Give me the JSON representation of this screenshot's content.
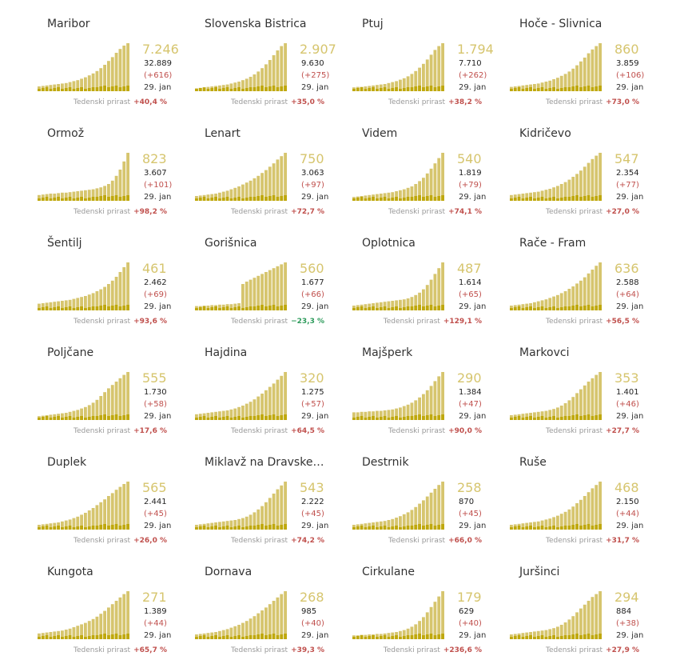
{
  "colors": {
    "bar_total": "#d6c56e",
    "bar_new": "#bfa80c",
    "positive": "#c0504d",
    "negative": "#2e9b5c"
  },
  "date_label": "29. jan",
  "growth_label": "Tedenski prirast",
  "chart_data": [
    {
      "type": "bar",
      "title": "Maribor",
      "active": "7.246",
      "total": "32.889",
      "delta": "(+616)",
      "date": "29. jan",
      "growth": "+40,4 %",
      "values": [
        0.1,
        0.11,
        0.12,
        0.13,
        0.14,
        0.15,
        0.16,
        0.17,
        0.19,
        0.21,
        0.23,
        0.26,
        0.29,
        0.33,
        0.37,
        0.42,
        0.48,
        0.55,
        0.63,
        0.71,
        0.8,
        0.88,
        0.95,
        1.0
      ]
    },
    {
      "type": "bar",
      "title": "Slovenska Bistrica",
      "active": "2.907",
      "total": "9.630",
      "delta": "(+275)",
      "date": "29. jan",
      "growth": "+35,0 %",
      "values": [
        0.06,
        0.07,
        0.08,
        0.09,
        0.1,
        0.11,
        0.12,
        0.13,
        0.14,
        0.16,
        0.18,
        0.2,
        0.23,
        0.26,
        0.3,
        0.35,
        0.41,
        0.48,
        0.56,
        0.65,
        0.75,
        0.85,
        0.94,
        1.0
      ]
    },
    {
      "type": "bar",
      "title": "Ptuj",
      "active": "1.794",
      "total": "7.710",
      "delta": "(+262)",
      "date": "29. jan",
      "growth": "+38,2 %",
      "values": [
        0.08,
        0.09,
        0.09,
        0.1,
        0.11,
        0.12,
        0.13,
        0.14,
        0.15,
        0.17,
        0.19,
        0.21,
        0.24,
        0.27,
        0.31,
        0.36,
        0.42,
        0.49,
        0.57,
        0.66,
        0.76,
        0.86,
        0.94,
        1.0
      ]
    },
    {
      "type": "bar",
      "title": "Hoče - Slivnica",
      "active": "860",
      "total": "3.859",
      "delta": "(+106)",
      "date": "29. jan",
      "growth": "+73,0 %",
      "values": [
        0.09,
        0.1,
        0.11,
        0.12,
        0.13,
        0.14,
        0.15,
        0.16,
        0.18,
        0.2,
        0.22,
        0.25,
        0.28,
        0.32,
        0.36,
        0.41,
        0.47,
        0.54,
        0.62,
        0.7,
        0.79,
        0.87,
        0.94,
        1.0
      ]
    },
    {
      "type": "bar",
      "title": "Ormož",
      "active": "823",
      "total": "3.607",
      "delta": "(+101)",
      "date": "29. jan",
      "growth": "+98,2 %",
      "values": [
        0.12,
        0.13,
        0.14,
        0.15,
        0.15,
        0.16,
        0.17,
        0.17,
        0.18,
        0.19,
        0.2,
        0.21,
        0.22,
        0.23,
        0.24,
        0.26,
        0.28,
        0.31,
        0.35,
        0.42,
        0.52,
        0.65,
        0.82,
        1.0
      ]
    },
    {
      "type": "bar",
      "title": "Lenart",
      "active": "750",
      "total": "3.063",
      "delta": "(+97)",
      "date": "29. jan",
      "growth": "+72,7 %",
      "values": [
        0.1,
        0.11,
        0.12,
        0.13,
        0.14,
        0.15,
        0.17,
        0.19,
        0.21,
        0.24,
        0.27,
        0.3,
        0.34,
        0.38,
        0.42,
        0.47,
        0.52,
        0.58,
        0.64,
        0.71,
        0.78,
        0.86,
        0.93,
        1.0
      ]
    },
    {
      "type": "bar",
      "title": "Videm",
      "active": "540",
      "total": "1.819",
      "delta": "(+79)",
      "date": "29. jan",
      "growth": "+74,1 %",
      "values": [
        0.08,
        0.09,
        0.1,
        0.11,
        0.12,
        0.13,
        0.14,
        0.15,
        0.16,
        0.17,
        0.18,
        0.2,
        0.22,
        0.24,
        0.27,
        0.3,
        0.35,
        0.41,
        0.48,
        0.57,
        0.67,
        0.78,
        0.89,
        1.0
      ]
    },
    {
      "type": "bar",
      "title": "Kidričevo",
      "active": "547",
      "total": "2.354",
      "delta": "(+77)",
      "date": "29. jan",
      "growth": "+27,0 %",
      "values": [
        0.12,
        0.13,
        0.14,
        0.15,
        0.16,
        0.17,
        0.18,
        0.19,
        0.21,
        0.23,
        0.25,
        0.28,
        0.31,
        0.35,
        0.39,
        0.44,
        0.5,
        0.56,
        0.63,
        0.71,
        0.79,
        0.87,
        0.94,
        1.0
      ]
    },
    {
      "type": "bar",
      "title": "Šentilj",
      "active": "461",
      "total": "2.462",
      "delta": "(+69)",
      "date": "29. jan",
      "growth": "+93,6 %",
      "values": [
        0.14,
        0.15,
        0.16,
        0.17,
        0.18,
        0.19,
        0.2,
        0.21,
        0.22,
        0.24,
        0.26,
        0.28,
        0.3,
        0.33,
        0.36,
        0.4,
        0.44,
        0.49,
        0.55,
        0.62,
        0.7,
        0.8,
        0.9,
        1.0
      ]
    },
    {
      "type": "bar",
      "title": "Gorišnica",
      "active": "560",
      "total": "1.677",
      "delta": "(+66)",
      "date": "29. jan",
      "growth": "−23,3 %",
      "values": [
        0.09,
        0.09,
        0.1,
        0.1,
        0.11,
        0.11,
        0.12,
        0.12,
        0.13,
        0.13,
        0.14,
        0.15,
        0.55,
        0.6,
        0.64,
        0.68,
        0.72,
        0.76,
        0.8,
        0.84,
        0.88,
        0.92,
        0.96,
        1.0
      ]
    },
    {
      "type": "bar",
      "title": "Oplotnica",
      "active": "487",
      "total": "1.614",
      "delta": "(+65)",
      "date": "29. jan",
      "growth": "+129,1 %",
      "values": [
        0.1,
        0.11,
        0.12,
        0.13,
        0.14,
        0.15,
        0.16,
        0.17,
        0.18,
        0.19,
        0.2,
        0.21,
        0.22,
        0.23,
        0.25,
        0.28,
        0.32,
        0.37,
        0.44,
        0.53,
        0.64,
        0.76,
        0.88,
        1.0
      ]
    },
    {
      "type": "bar",
      "title": "Rače - Fram",
      "active": "636",
      "total": "2.588",
      "delta": "(+64)",
      "date": "29. jan",
      "growth": "+56,5 %",
      "values": [
        0.1,
        0.11,
        0.12,
        0.13,
        0.14,
        0.15,
        0.17,
        0.19,
        0.21,
        0.23,
        0.26,
        0.29,
        0.32,
        0.36,
        0.4,
        0.45,
        0.5,
        0.56,
        0.62,
        0.69,
        0.77,
        0.85,
        0.93,
        1.0
      ]
    },
    {
      "type": "bar",
      "title": "Poljčane",
      "active": "555",
      "total": "1.730",
      "delta": "(+58)",
      "date": "29. jan",
      "growth": "+17,6 %",
      "values": [
        0.08,
        0.09,
        0.1,
        0.11,
        0.12,
        0.13,
        0.14,
        0.15,
        0.17,
        0.19,
        0.21,
        0.24,
        0.27,
        0.31,
        0.36,
        0.42,
        0.5,
        0.58,
        0.66,
        0.73,
        0.8,
        0.87,
        0.94,
        1.0
      ]
    },
    {
      "type": "bar",
      "title": "Hajdina",
      "active": "320",
      "total": "1.275",
      "delta": "(+57)",
      "date": "29. jan",
      "growth": "+64,5 %",
      "values": [
        0.12,
        0.13,
        0.14,
        0.15,
        0.16,
        0.17,
        0.18,
        0.19,
        0.2,
        0.22,
        0.24,
        0.27,
        0.3,
        0.34,
        0.38,
        0.43,
        0.49,
        0.55,
        0.62,
        0.69,
        0.76,
        0.84,
        0.92,
        1.0
      ]
    },
    {
      "type": "bar",
      "title": "Majšperk",
      "active": "290",
      "total": "1.384",
      "delta": "(+47)",
      "date": "29. jan",
      "growth": "+90,0 %",
      "values": [
        0.16,
        0.16,
        0.17,
        0.17,
        0.18,
        0.18,
        0.19,
        0.19,
        0.2,
        0.21,
        0.22,
        0.24,
        0.26,
        0.29,
        0.32,
        0.36,
        0.41,
        0.47,
        0.54,
        0.62,
        0.71,
        0.81,
        0.91,
        1.0
      ]
    },
    {
      "type": "bar",
      "title": "Markovci",
      "active": "353",
      "total": "1.401",
      "delta": "(+46)",
      "date": "29. jan",
      "growth": "+27,7 %",
      "values": [
        0.1,
        0.11,
        0.12,
        0.13,
        0.14,
        0.15,
        0.16,
        0.17,
        0.18,
        0.19,
        0.21,
        0.23,
        0.26,
        0.3,
        0.35,
        0.41,
        0.48,
        0.56,
        0.64,
        0.72,
        0.8,
        0.87,
        0.94,
        1.0
      ]
    },
    {
      "type": "bar",
      "title": "Duplek",
      "active": "565",
      "total": "2.441",
      "delta": "(+45)",
      "date": "29. jan",
      "growth": "+26,0 %",
      "values": [
        0.1,
        0.11,
        0.12,
        0.13,
        0.14,
        0.15,
        0.17,
        0.19,
        0.21,
        0.24,
        0.27,
        0.31,
        0.35,
        0.4,
        0.45,
        0.51,
        0.57,
        0.63,
        0.7,
        0.76,
        0.83,
        0.89,
        0.95,
        1.0
      ]
    },
    {
      "type": "bar",
      "title": "Miklavž na Dravske…",
      "active": "543",
      "total": "2.222",
      "delta": "(+45)",
      "date": "29. jan",
      "growth": "+74,2 %",
      "values": [
        0.1,
        0.11,
        0.12,
        0.13,
        0.14,
        0.15,
        0.16,
        0.17,
        0.18,
        0.19,
        0.2,
        0.22,
        0.24,
        0.27,
        0.31,
        0.36,
        0.42,
        0.49,
        0.57,
        0.66,
        0.75,
        0.84,
        0.92,
        1.0
      ]
    },
    {
      "type": "bar",
      "title": "Destrnik",
      "active": "258",
      "total": "870",
      "delta": "(+45)",
      "date": "29. jan",
      "growth": "+66,0 %",
      "values": [
        0.1,
        0.11,
        0.12,
        0.13,
        0.14,
        0.15,
        0.16,
        0.17,
        0.18,
        0.2,
        0.22,
        0.25,
        0.28,
        0.32,
        0.36,
        0.41,
        0.47,
        0.54,
        0.61,
        0.69,
        0.77,
        0.85,
        0.93,
        1.0
      ]
    },
    {
      "type": "bar",
      "title": "Ruše",
      "active": "468",
      "total": "2.150",
      "delta": "(+44)",
      "date": "29. jan",
      "growth": "+31,7 %",
      "values": [
        0.1,
        0.11,
        0.12,
        0.13,
        0.14,
        0.15,
        0.16,
        0.17,
        0.19,
        0.21,
        0.23,
        0.26,
        0.29,
        0.33,
        0.37,
        0.42,
        0.48,
        0.55,
        0.62,
        0.7,
        0.78,
        0.86,
        0.93,
        1.0
      ]
    },
    {
      "type": "bar",
      "title": "Kungota",
      "active": "271",
      "total": "1.389",
      "delta": "(+44)",
      "date": "29. jan",
      "growth": "+65,7 %",
      "values": [
        0.12,
        0.13,
        0.14,
        0.15,
        0.16,
        0.17,
        0.18,
        0.2,
        0.22,
        0.25,
        0.28,
        0.31,
        0.34,
        0.38,
        0.42,
        0.47,
        0.53,
        0.59,
        0.66,
        0.73,
        0.8,
        0.87,
        0.94,
        1.0
      ]
    },
    {
      "type": "bar",
      "title": "Dornava",
      "active": "268",
      "total": "985",
      "delta": "(+40)",
      "date": "29. jan",
      "growth": "+39,3 %",
      "values": [
        0.1,
        0.11,
        0.12,
        0.13,
        0.14,
        0.15,
        0.17,
        0.19,
        0.21,
        0.24,
        0.27,
        0.3,
        0.34,
        0.38,
        0.43,
        0.48,
        0.54,
        0.6,
        0.66,
        0.73,
        0.8,
        0.87,
        0.94,
        1.0
      ]
    },
    {
      "type": "bar",
      "title": "Cirkulane",
      "active": "179",
      "total": "629",
      "delta": "(+40)",
      "date": "29. jan",
      "growth": "+236,6 %",
      "values": [
        0.08,
        0.08,
        0.09,
        0.09,
        0.1,
        0.1,
        0.11,
        0.11,
        0.12,
        0.13,
        0.14,
        0.15,
        0.17,
        0.19,
        0.22,
        0.26,
        0.31,
        0.38,
        0.46,
        0.56,
        0.67,
        0.78,
        0.89,
        1.0
      ]
    },
    {
      "type": "bar",
      "title": "Juršinci",
      "active": "294",
      "total": "884",
      "delta": "(+38)",
      "date": "29. jan",
      "growth": "+27,9 %",
      "values": [
        0.1,
        0.11,
        0.12,
        0.13,
        0.14,
        0.15,
        0.16,
        0.17,
        0.18,
        0.19,
        0.21,
        0.23,
        0.26,
        0.3,
        0.35,
        0.41,
        0.48,
        0.56,
        0.64,
        0.72,
        0.8,
        0.88,
        0.94,
        1.0
      ]
    }
  ]
}
